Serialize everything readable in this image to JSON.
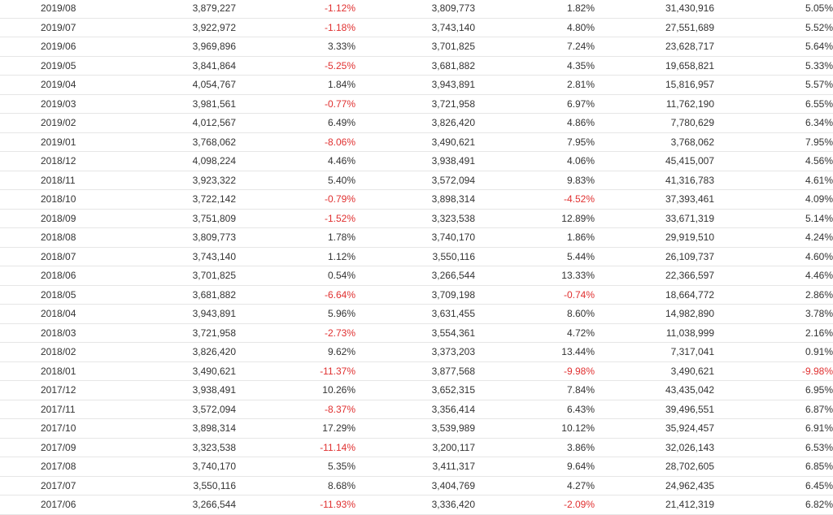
{
  "table": {
    "rows": [
      {
        "date": "2019/08",
        "v1": "3,879,227",
        "p1": "-1.12%",
        "v2": "3,809,773",
        "p2": "1.82%",
        "v3": "31,430,916",
        "p3": "5.05%"
      },
      {
        "date": "2019/07",
        "v1": "3,922,972",
        "p1": "-1.18%",
        "v2": "3,743,140",
        "p2": "4.80%",
        "v3": "27,551,689",
        "p3": "5.52%"
      },
      {
        "date": "2019/06",
        "v1": "3,969,896",
        "p1": "3.33%",
        "v2": "3,701,825",
        "p2": "7.24%",
        "v3": "23,628,717",
        "p3": "5.64%"
      },
      {
        "date": "2019/05",
        "v1": "3,841,864",
        "p1": "-5.25%",
        "v2": "3,681,882",
        "p2": "4.35%",
        "v3": "19,658,821",
        "p3": "5.33%"
      },
      {
        "date": "2019/04",
        "v1": "4,054,767",
        "p1": "1.84%",
        "v2": "3,943,891",
        "p2": "2.81%",
        "v3": "15,816,957",
        "p3": "5.57%"
      },
      {
        "date": "2019/03",
        "v1": "3,981,561",
        "p1": "-0.77%",
        "v2": "3,721,958",
        "p2": "6.97%",
        "v3": "11,762,190",
        "p3": "6.55%"
      },
      {
        "date": "2019/02",
        "v1": "4,012,567",
        "p1": "6.49%",
        "v2": "3,826,420",
        "p2": "4.86%",
        "v3": "7,780,629",
        "p3": "6.34%"
      },
      {
        "date": "2019/01",
        "v1": "3,768,062",
        "p1": "-8.06%",
        "v2": "3,490,621",
        "p2": "7.95%",
        "v3": "3,768,062",
        "p3": "7.95%"
      },
      {
        "date": "2018/12",
        "v1": "4,098,224",
        "p1": "4.46%",
        "v2": "3,938,491",
        "p2": "4.06%",
        "v3": "45,415,007",
        "p3": "4.56%"
      },
      {
        "date": "2018/11",
        "v1": "3,923,322",
        "p1": "5.40%",
        "v2": "3,572,094",
        "p2": "9.83%",
        "v3": "41,316,783",
        "p3": "4.61%"
      },
      {
        "date": "2018/10",
        "v1": "3,722,142",
        "p1": "-0.79%",
        "v2": "3,898,314",
        "p2": "-4.52%",
        "v3": "37,393,461",
        "p3": "4.09%"
      },
      {
        "date": "2018/09",
        "v1": "3,751,809",
        "p1": "-1.52%",
        "v2": "3,323,538",
        "p2": "12.89%",
        "v3": "33,671,319",
        "p3": "5.14%"
      },
      {
        "date": "2018/08",
        "v1": "3,809,773",
        "p1": "1.78%",
        "v2": "3,740,170",
        "p2": "1.86%",
        "v3": "29,919,510",
        "p3": "4.24%"
      },
      {
        "date": "2018/07",
        "v1": "3,743,140",
        "p1": "1.12%",
        "v2": "3,550,116",
        "p2": "5.44%",
        "v3": "26,109,737",
        "p3": "4.60%"
      },
      {
        "date": "2018/06",
        "v1": "3,701,825",
        "p1": "0.54%",
        "v2": "3,266,544",
        "p2": "13.33%",
        "v3": "22,366,597",
        "p3": "4.46%"
      },
      {
        "date": "2018/05",
        "v1": "3,681,882",
        "p1": "-6.64%",
        "v2": "3,709,198",
        "p2": "-0.74%",
        "v3": "18,664,772",
        "p3": "2.86%"
      },
      {
        "date": "2018/04",
        "v1": "3,943,891",
        "p1": "5.96%",
        "v2": "3,631,455",
        "p2": "8.60%",
        "v3": "14,982,890",
        "p3": "3.78%"
      },
      {
        "date": "2018/03",
        "v1": "3,721,958",
        "p1": "-2.73%",
        "v2": "3,554,361",
        "p2": "4.72%",
        "v3": "11,038,999",
        "p3": "2.16%"
      },
      {
        "date": "2018/02",
        "v1": "3,826,420",
        "p1": "9.62%",
        "v2": "3,373,203",
        "p2": "13.44%",
        "v3": "7,317,041",
        "p3": "0.91%"
      },
      {
        "date": "2018/01",
        "v1": "3,490,621",
        "p1": "-11.37%",
        "v2": "3,877,568",
        "p2": "-9.98%",
        "v3": "3,490,621",
        "p3": "-9.98%"
      },
      {
        "date": "2017/12",
        "v1": "3,938,491",
        "p1": "10.26%",
        "v2": "3,652,315",
        "p2": "7.84%",
        "v3": "43,435,042",
        "p3": "6.95%"
      },
      {
        "date": "2017/11",
        "v1": "3,572,094",
        "p1": "-8.37%",
        "v2": "3,356,414",
        "p2": "6.43%",
        "v3": "39,496,551",
        "p3": "6.87%"
      },
      {
        "date": "2017/10",
        "v1": "3,898,314",
        "p1": "17.29%",
        "v2": "3,539,989",
        "p2": "10.12%",
        "v3": "35,924,457",
        "p3": "6.91%"
      },
      {
        "date": "2017/09",
        "v1": "3,323,538",
        "p1": "-11.14%",
        "v2": "3,200,117",
        "p2": "3.86%",
        "v3": "32,026,143",
        "p3": "6.53%"
      },
      {
        "date": "2017/08",
        "v1": "3,740,170",
        "p1": "5.35%",
        "v2": "3,411,317",
        "p2": "9.64%",
        "v3": "28,702,605",
        "p3": "6.85%"
      },
      {
        "date": "2017/07",
        "v1": "3,550,116",
        "p1": "8.68%",
        "v2": "3,404,769",
        "p2": "4.27%",
        "v3": "24,962,435",
        "p3": "6.45%"
      },
      {
        "date": "2017/06",
        "v1": "3,266,544",
        "p1": "-11.93%",
        "v2": "3,336,420",
        "p2": "-2.09%",
        "v3": "21,412,319",
        "p3": "6.82%"
      }
    ]
  },
  "colors": {
    "negative": "#e03030",
    "text": "#333333",
    "row_border": "#e6e6e6"
  }
}
